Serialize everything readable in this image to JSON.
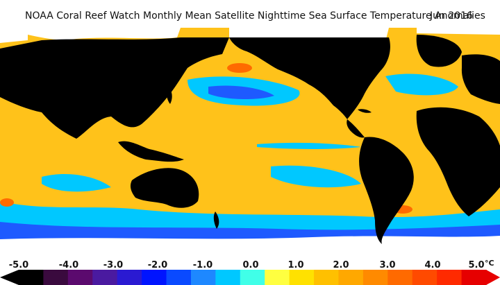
{
  "title": {
    "text": "NOAA Coral Reef Watch Monthly Mean Satellite Nighttime Sea Surface Temperature Anomalies",
    "date": "Jun 2016"
  },
  "legend": {
    "ticks": [
      "-5.0",
      "-4.0",
      "-3.0",
      "-2.0",
      "-1.0",
      "0.0",
      "1.0",
      "2.0",
      "3.0",
      "4.0",
      "5.0"
    ],
    "unit": "°C",
    "colors": [
      "#000000",
      "#3a0a3e",
      "#5b0a6e",
      "#4a1aa0",
      "#2a1ad2",
      "#0014ff",
      "#0a4aff",
      "#1e88ff",
      "#00c8ff",
      "#40ffe8",
      "#ffff40",
      "#ffe100",
      "#ffc000",
      "#ffa800",
      "#ff8a00",
      "#ff6a00",
      "#ff4a00",
      "#ff2a00",
      "#e60000"
    ]
  },
  "map_colors": {
    "land": "#000000",
    "ice": "#ffffff",
    "warm": "#ffc21a",
    "hot": "#ff6a00",
    "cool": "#00c8ff",
    "cold": "#1e5aff",
    "neutral": "#ffff40"
  }
}
